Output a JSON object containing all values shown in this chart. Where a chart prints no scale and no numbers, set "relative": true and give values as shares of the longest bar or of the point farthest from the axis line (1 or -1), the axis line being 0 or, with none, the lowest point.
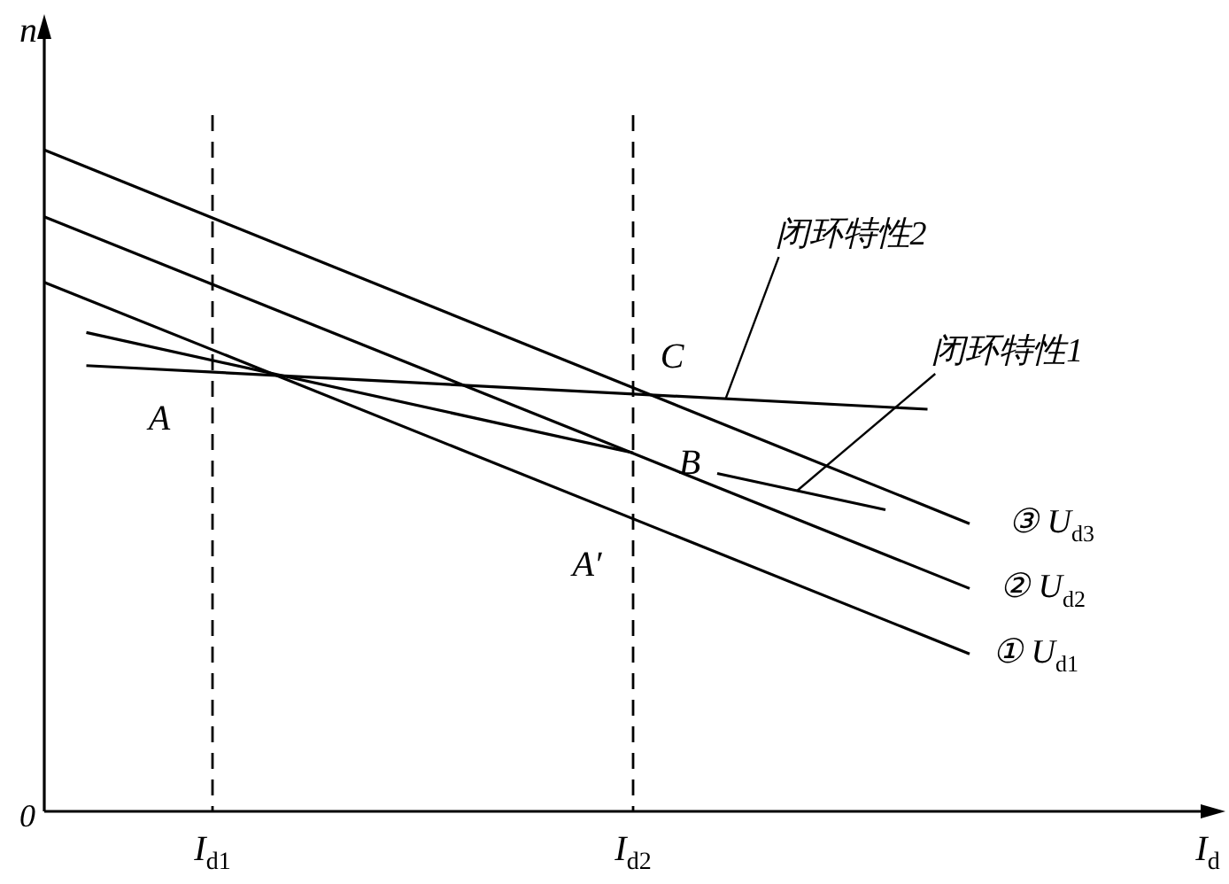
{
  "chart_data": {
    "type": "line",
    "relative": true,
    "ylabel": "n",
    "xlabel": "I$_{d}$",
    "categories": [
      null,
      null,
      null,
      null,
      "I$_{d1}$",
      null,
      null,
      null,
      null,
      null,
      null,
      null,
      null,
      null,
      "I$_{d2}$",
      null,
      null,
      null,
      null,
      null,
      null,
      null,
      null,
      null,
      null,
      null,
      null,
      null,
      null
    ],
    "tick_labels": "x",
    "grid": false,
    "legend": false,
    "marker": "none",
    "line_style": "solid",
    "series": [
      {
        "name": "③ U$_{d3}$",
        "color": "#000000",
        "values": [
          1,
          null,
          null,
          null,
          null,
          null,
          null,
          null,
          null,
          null,
          null,
          null,
          null,
          null,
          null,
          null,
          null,
          null,
          null,
          null,
          null,
          null,
          0.435,
          null,
          null,
          null,
          null,
          null,
          null
        ]
      },
      {
        "name": "② U$_{d2}$",
        "color": "#000000",
        "values": [
          0.899,
          null,
          null,
          null,
          null,
          null,
          null,
          null,
          null,
          null,
          null,
          null,
          null,
          null,
          null,
          null,
          null,
          null,
          null,
          null,
          null,
          null,
          0.337,
          null,
          null,
          null,
          null,
          null,
          null
        ]
      },
      {
        "name": "① U$_{d1}$",
        "color": "#000000",
        "values": [
          0.8,
          null,
          null,
          null,
          null,
          null,
          null,
          null,
          null,
          null,
          null,
          null,
          null,
          null,
          null,
          null,
          null,
          null,
          null,
          null,
          null,
          null,
          0.238,
          null,
          null,
          null,
          null,
          null,
          null
        ]
      },
      {
        "name": "闭环特性2",
        "color": "#000000",
        "values": [
          null,
          0.674,
          null,
          null,
          null,
          null,
          null,
          null,
          null,
          null,
          null,
          null,
          null,
          null,
          null,
          null,
          null,
          null,
          null,
          null,
          null,
          0.608,
          null,
          null,
          null,
          null,
          null,
          null,
          null
        ]
      },
      {
        "color": "#000000",
        "values": [
          null,
          0.724,
          null,
          null,
          null,
          null,
          null,
          null,
          null,
          null,
          null,
          null,
          null,
          null,
          0.542,
          null,
          null,
          null,
          null,
          null,
          null,
          null,
          null,
          null,
          null,
          null,
          null,
          null,
          null
        ]
      },
      {
        "name": "闭环特性1",
        "color": "#000000",
        "values": [
          null,
          null,
          null,
          null,
          null,
          null,
          null,
          null,
          null,
          null,
          null,
          null,
          null,
          null,
          null,
          null,
          0.511,
          null,
          null,
          null,
          0.456,
          null,
          null,
          null,
          null,
          null,
          null,
          null,
          null
        ]
      }
    ],
    "ref_lines": [
      {
        "axis": "x",
        "value": "I$_{d1}$",
        "color": "#000000",
        "line_style": "dashed"
      },
      {
        "axis": "x",
        "value": "I$_{d2}$",
        "color": "#000000",
        "line_style": "dashed"
      }
    ],
    "annotations": [
      "0",
      {
        "text": "A",
        "x": "I$_{d1}$",
        "y": 0.698
      },
      {
        "text": "C",
        "x": "I$_{d2}$",
        "y": 0.64
      },
      {
        "text": "B",
        "x": "I$_{d2}$",
        "y": 0.541
      },
      {
        "text": "A′",
        "x": "I$_{d2}$",
        "y": 0.442
      }
    ]
  }
}
